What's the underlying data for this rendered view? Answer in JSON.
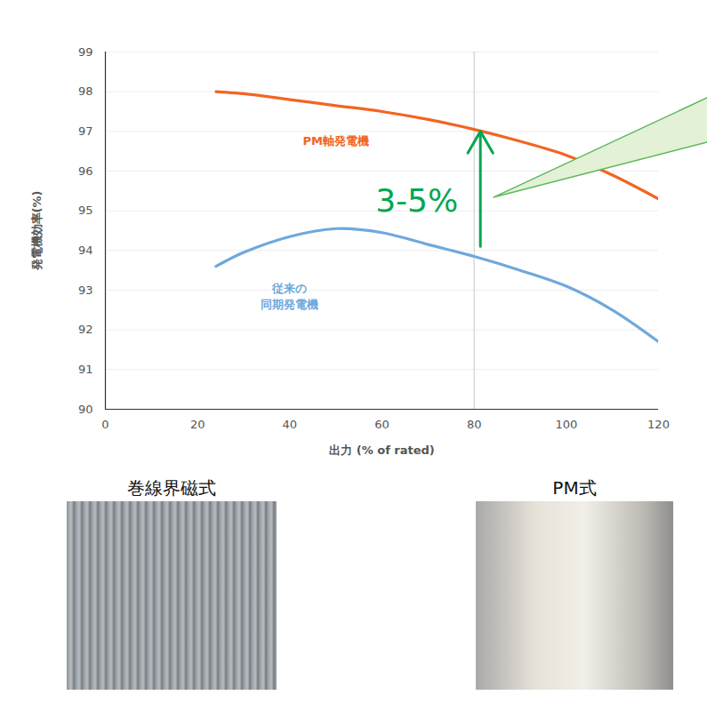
{
  "chart_data": {
    "type": "line",
    "xlabel": "出力 (% of rated)",
    "ylabel": "発電機効率(%)",
    "x": [
      24,
      30,
      40,
      50,
      60,
      70,
      80,
      90,
      100,
      110,
      120
    ],
    "series": [
      {
        "name": "PM軸発電機",
        "color": "#f26522",
        "values": [
          98.0,
          97.95,
          97.8,
          97.65,
          97.5,
          97.3,
          97.05,
          96.75,
          96.4,
          95.9,
          95.3
        ]
      },
      {
        "name": "従来の\n同期発電機",
        "color": "#6fa8dc",
        "values": [
          93.6,
          93.95,
          94.35,
          94.55,
          94.45,
          94.15,
          93.85,
          93.5,
          93.1,
          92.5,
          91.7
        ]
      }
    ],
    "xlim": [
      0,
      120
    ],
    "xticks": [
      0,
      20,
      40,
      60,
      80,
      100,
      120
    ],
    "ylim": [
      90,
      99
    ],
    "yticks": [
      90,
      91,
      92,
      93,
      94,
      95,
      96,
      97,
      98,
      99
    ],
    "grid": "y",
    "annotations": [
      {
        "text": "3-5%",
        "x": 80,
        "y_from": 94.1,
        "y_to": 97.0,
        "color": "#00a651"
      }
    ]
  },
  "images": [
    {
      "label": "巻線界磁式"
    },
    {
      "label": "PM式"
    }
  ]
}
